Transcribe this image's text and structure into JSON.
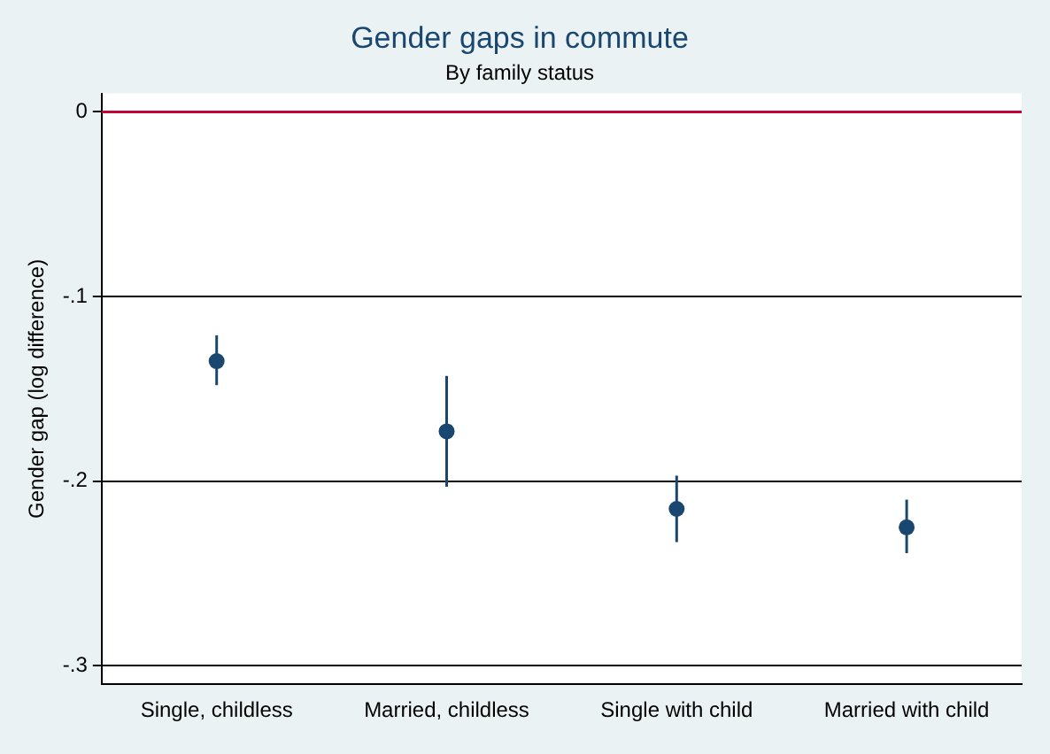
{
  "chart_data": {
    "type": "scatter",
    "title": "Gender gaps in commute",
    "subtitle": "By family status",
    "ylabel": "Gender gap (log difference)",
    "categories": [
      "Single, childless",
      "Married, childless",
      "Single with child",
      "Married with child"
    ],
    "series": [
      {
        "color": "#1a476f",
        "values": [
          -0.135,
          -0.173,
          -0.215,
          -0.225
        ],
        "errors": [
          [
            -0.148,
            -0.121
          ],
          [
            -0.203,
            -0.143
          ],
          [
            -0.233,
            -0.197
          ],
          [
            -0.239,
            -0.21
          ]
        ]
      }
    ],
    "ylim": [
      -0.31,
      0.01
    ],
    "yticks": [
      {
        "value": -0.3,
        "label": "-.3"
      },
      {
        "value": -0.2,
        "label": "-.2"
      },
      {
        "value": -0.1,
        "label": "-.1"
      },
      {
        "value": 0,
        "label": "0"
      }
    ],
    "ref_lines": [
      {
        "axis": "y",
        "value": 0,
        "color": "#c10534"
      }
    ],
    "grid": "y",
    "legend": false,
    "marker": "circle"
  }
}
